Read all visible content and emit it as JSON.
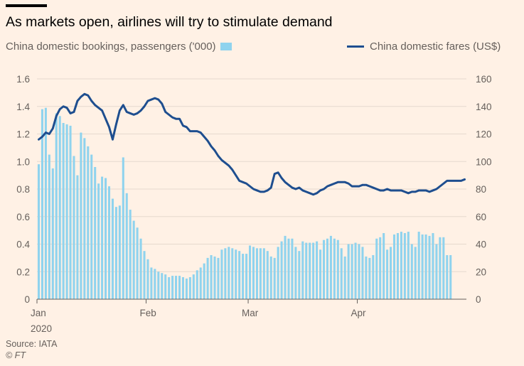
{
  "chart_data": {
    "type": "bar",
    "title": "As markets open, airlines will try to stimulate demand",
    "source": "Source: IATA",
    "credit": "© FT",
    "left_axis": {
      "ticks": [
        "0",
        "0.2",
        "0.4",
        "0.6",
        "0.8",
        "1.0",
        "1.2",
        "1.4",
        "1.6"
      ],
      "ylim": [
        0,
        1.6
      ]
    },
    "right_axis": {
      "ticks": [
        "0",
        "20",
        "40",
        "60",
        "80",
        "100",
        "120",
        "140",
        "160"
      ],
      "ylim": [
        0,
        160
      ]
    },
    "x_axis": {
      "tick_labels": [
        "Jan",
        "Feb",
        "Mar",
        "Apr"
      ],
      "tick_days": [
        1,
        32,
        61,
        92
      ],
      "year_label": "2020",
      "xlim": [
        1,
        122
      ]
    },
    "grid": true,
    "series": [
      {
        "name": "China domestic bookings, passengers ('000)",
        "type": "bar",
        "axis": "left",
        "color": "#8fd3ee",
        "values": [
          0.98,
          1.38,
          1.39,
          1.05,
          0.95,
          1.35,
          1.33,
          1.28,
          1.27,
          1.26,
          1.04,
          0.9,
          1.21,
          1.17,
          1.11,
          1.05,
          0.96,
          0.84,
          0.89,
          0.88,
          0.82,
          0.73,
          0.67,
          0.68,
          1.03,
          0.77,
          0.65,
          0.57,
          0.52,
          0.44,
          0.35,
          0.29,
          0.23,
          0.22,
          0.2,
          0.19,
          0.18,
          0.16,
          0.17,
          0.17,
          0.17,
          0.16,
          0.15,
          0.16,
          0.18,
          0.21,
          0.23,
          0.26,
          0.3,
          0.32,
          0.31,
          0.3,
          0.36,
          0.37,
          0.38,
          0.37,
          0.36,
          0.35,
          0.33,
          0.33,
          0.39,
          0.38,
          0.37,
          0.37,
          0.37,
          0.35,
          0.31,
          0.3,
          0.38,
          0.42,
          0.46,
          0.44,
          0.44,
          0.38,
          0.35,
          0.42,
          0.41,
          0.41,
          0.41,
          0.42,
          0.36,
          0.43,
          0.44,
          0.46,
          0.44,
          0.43,
          0.37,
          0.31,
          0.4,
          0.4,
          0.41,
          0.4,
          0.38,
          0.31,
          0.3,
          0.32,
          0.44,
          0.45,
          0.48,
          0.36,
          0.38,
          0.47,
          0.48,
          0.49,
          0.48,
          0.49,
          0.4,
          0.38,
          0.49,
          0.47,
          0.47,
          0.46,
          0.48,
          0.4,
          0.45,
          0.45,
          0.32,
          0.32
        ]
      },
      {
        "name": "China domestic fares (US$)",
        "type": "line",
        "axis": "right",
        "color": "#1e4e8f",
        "values": [
          116,
          118,
          121,
          120,
          124,
          133,
          138,
          140,
          139,
          135,
          136,
          144,
          147,
          149,
          148,
          144,
          141,
          139,
          137,
          131,
          125,
          116,
          127,
          137,
          141,
          136,
          135,
          134,
          135,
          137,
          140,
          144,
          145,
          146,
          145,
          142,
          136,
          134,
          132,
          131,
          131,
          126,
          125,
          122,
          122,
          122,
          121,
          118,
          115,
          111,
          108,
          104,
          101,
          99,
          97,
          94,
          90,
          86,
          85,
          84,
          82,
          80,
          79,
          78,
          78,
          79,
          81,
          91,
          92,
          88,
          85,
          83,
          81,
          80,
          81,
          79,
          78,
          77,
          76,
          77,
          79,
          80,
          82,
          83,
          84,
          85,
          85,
          85,
          84,
          82,
          82,
          82,
          83,
          83,
          82,
          81,
          80,
          79,
          79,
          80,
          79,
          79,
          79,
          79,
          78,
          77,
          78,
          78,
          79,
          79,
          79,
          78,
          79,
          80,
          82,
          84,
          86,
          86,
          86,
          86,
          86,
          87
        ]
      }
    ]
  }
}
